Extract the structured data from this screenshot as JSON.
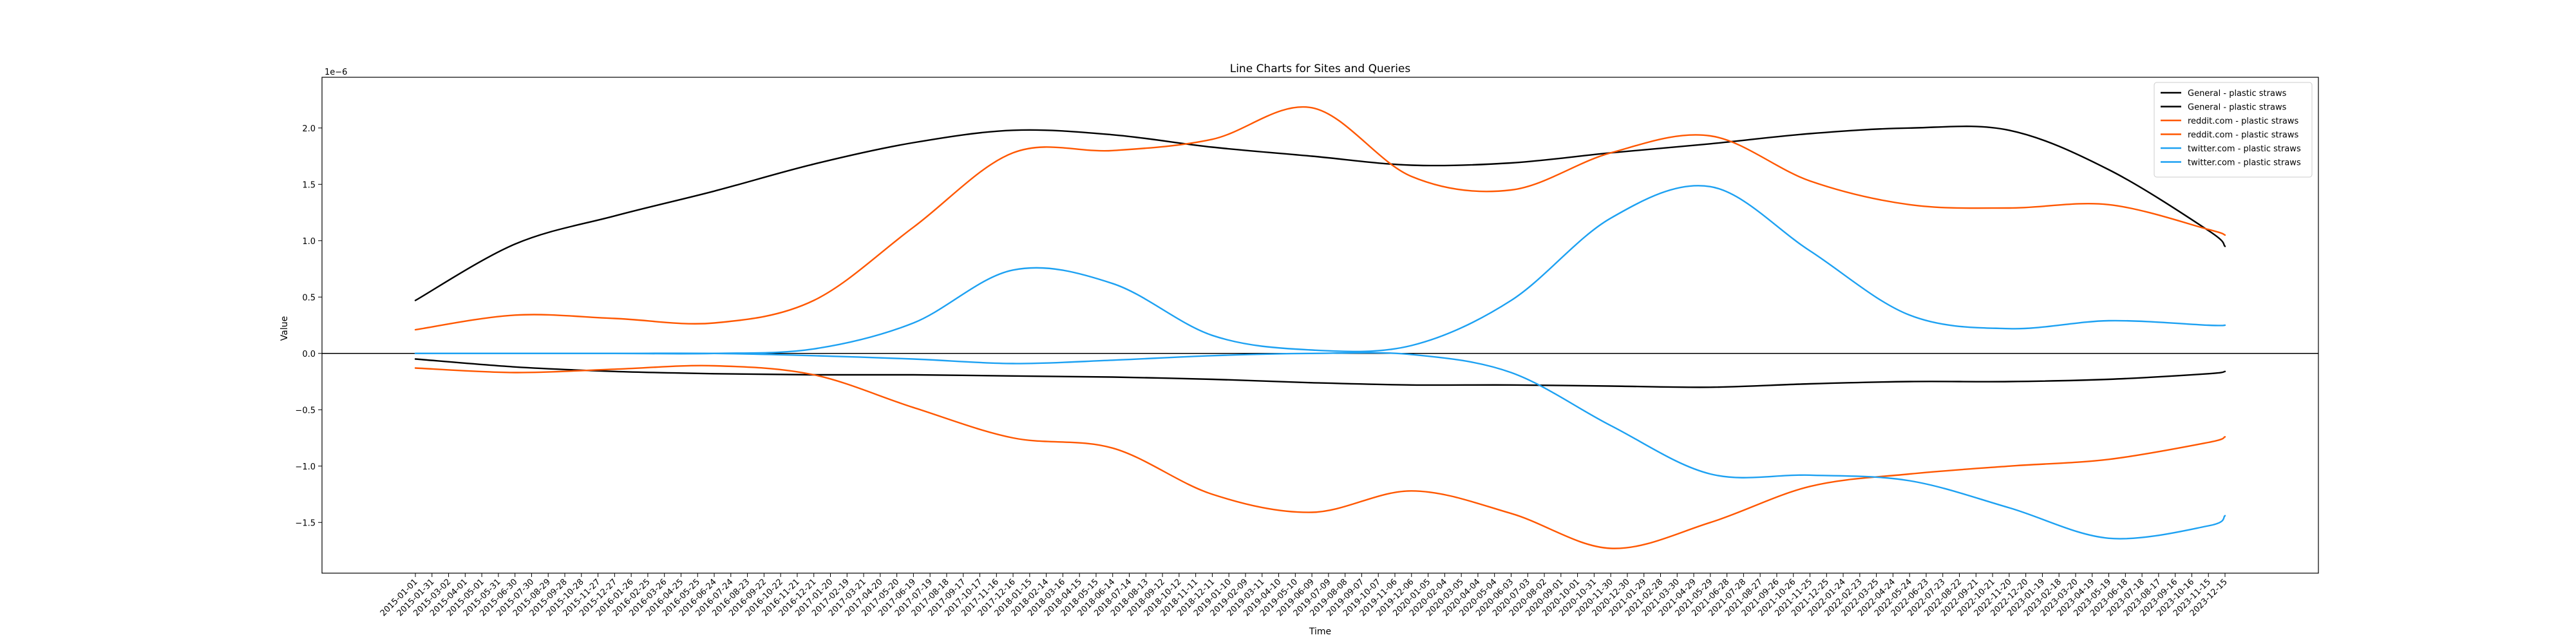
{
  "chart_data": {
    "type": "line",
    "title": "Line Charts for Sites and Queries",
    "xlabel": "Time",
    "ylabel": "Value",
    "y_multiplier_label": "1e−6",
    "ylim": [
      -1.95,
      2.45
    ],
    "yticks": [
      -1.5,
      -1.0,
      -0.5,
      0.0,
      0.5,
      1.0,
      1.5,
      2.0
    ],
    "ytick_labels": [
      "−1.5",
      "−1.0",
      "−0.5",
      "0.0",
      "0.5",
      "1.0",
      "1.5",
      "2.0"
    ],
    "zero_line": true,
    "grid": false,
    "legend_position": "top-right",
    "x_dates": [
      "2015-01-01",
      "2015-01-31",
      "2015-03-02",
      "2015-04-01",
      "2015-05-01",
      "2015-05-31",
      "2015-06-30",
      "2015-07-30",
      "2015-08-29",
      "2015-09-28",
      "2015-10-28",
      "2015-11-27",
      "2015-12-27",
      "2016-01-26",
      "2016-02-25",
      "2016-03-26",
      "2016-04-25",
      "2016-05-25",
      "2016-06-24",
      "2016-07-24",
      "2016-08-23",
      "2016-09-22",
      "2016-10-22",
      "2016-11-21",
      "2016-12-21",
      "2017-01-20",
      "2017-02-19",
      "2017-03-21",
      "2017-04-20",
      "2017-05-20",
      "2017-06-19",
      "2017-07-19",
      "2017-08-18",
      "2017-09-17",
      "2017-10-17",
      "2017-11-16",
      "2017-12-16",
      "2018-01-15",
      "2018-02-14",
      "2018-03-16",
      "2018-04-15",
      "2018-05-15",
      "2018-06-14",
      "2018-07-14",
      "2018-08-13",
      "2018-09-12",
      "2018-10-12",
      "2018-11-11",
      "2018-12-11",
      "2019-01-10",
      "2019-02-09",
      "2019-03-11",
      "2019-04-10",
      "2019-05-10",
      "2019-06-09",
      "2019-07-09",
      "2019-08-08",
      "2019-09-07",
      "2019-10-07",
      "2019-11-06",
      "2019-12-06",
      "2020-01-05",
      "2020-02-04",
      "2020-03-05",
      "2020-04-04",
      "2020-05-04",
      "2020-06-03",
      "2020-07-03",
      "2020-08-02",
      "2020-09-01",
      "2020-10-01",
      "2020-10-31",
      "2020-11-30",
      "2020-12-30",
      "2021-01-29",
      "2021-02-28",
      "2021-03-30",
      "2021-04-29",
      "2021-05-29",
      "2021-06-28",
      "2021-07-28",
      "2021-08-27",
      "2021-09-26",
      "2021-10-26",
      "2021-11-25",
      "2021-12-25",
      "2022-01-24",
      "2022-02-23",
      "2022-03-25",
      "2022-04-24",
      "2022-05-24",
      "2022-06-23",
      "2022-07-23",
      "2022-08-22",
      "2022-09-21",
      "2022-10-21",
      "2022-11-20",
      "2022-12-20",
      "2023-01-19",
      "2023-02-18",
      "2023-03-20",
      "2023-04-19",
      "2023-05-19",
      "2023-06-18",
      "2023-07-18",
      "2023-08-17",
      "2023-09-16",
      "2023-10-16",
      "2023-11-15",
      "2023-12-15"
    ],
    "series_x": [
      "2015-01-01",
      "2015-06-30",
      "2015-12-27",
      "2016-06-24",
      "2016-12-21",
      "2017-06-19",
      "2017-12-16",
      "2018-06-14",
      "2018-12-11",
      "2019-06-09",
      "2019-12-06",
      "2020-06-03",
      "2020-11-30",
      "2021-05-29",
      "2021-11-25",
      "2022-05-24",
      "2022-11-20",
      "2023-05-19",
      "2023-11-15",
      "2023-12-15"
    ],
    "series": [
      {
        "name": "General - plastic straws",
        "color": "#000000",
        "values": [
          0.47,
          0.97,
          1.22,
          1.44,
          1.68,
          1.87,
          1.98,
          1.94,
          1.83,
          1.75,
          1.67,
          1.69,
          1.78,
          1.86,
          1.95,
          2.0,
          1.98,
          1.63,
          1.09,
          0.95
        ]
      },
      {
        "name": "General - plastic straws",
        "color": "#000000",
        "values": [
          -0.05,
          -0.12,
          -0.16,
          -0.18,
          -0.19,
          -0.19,
          -0.2,
          -0.21,
          -0.23,
          -0.26,
          -0.28,
          -0.28,
          -0.29,
          -0.3,
          -0.27,
          -0.25,
          -0.25,
          -0.23,
          -0.18,
          -0.16
        ]
      },
      {
        "name": "reddit.com - plastic straws",
        "color": "#ff5700",
        "values": [
          0.21,
          0.34,
          0.31,
          0.27,
          0.47,
          1.12,
          1.78,
          1.8,
          1.9,
          2.18,
          1.57,
          1.45,
          1.78,
          1.93,
          1.53,
          1.32,
          1.29,
          1.32,
          1.1,
          1.05
        ]
      },
      {
        "name": "reddit.com - plastic straws",
        "color": "#ff5700",
        "values": [
          -0.13,
          -0.17,
          -0.14,
          -0.11,
          -0.19,
          -0.48,
          -0.75,
          -0.84,
          -1.25,
          -1.41,
          -1.22,
          -1.42,
          -1.73,
          -1.5,
          -1.18,
          -1.07,
          -1.0,
          -0.94,
          -0.79,
          -0.74
        ]
      },
      {
        "name": "twitter.com - plastic straws",
        "color": "#1da1f2",
        "values": [
          0.0,
          0.0,
          0.0,
          0.0,
          0.04,
          0.27,
          0.74,
          0.62,
          0.16,
          0.03,
          0.07,
          0.47,
          1.2,
          1.48,
          0.91,
          0.34,
          0.22,
          0.29,
          0.25,
          0.25
        ]
      },
      {
        "name": "twitter.com - plastic straws",
        "color": "#1da1f2",
        "values": [
          0.0,
          0.0,
          0.0,
          0.0,
          -0.02,
          -0.05,
          -0.09,
          -0.06,
          -0.02,
          0.0,
          -0.01,
          -0.17,
          -0.64,
          -1.07,
          -1.08,
          -1.13,
          -1.37,
          -1.64,
          -1.53,
          -1.44
        ]
      }
    ]
  }
}
